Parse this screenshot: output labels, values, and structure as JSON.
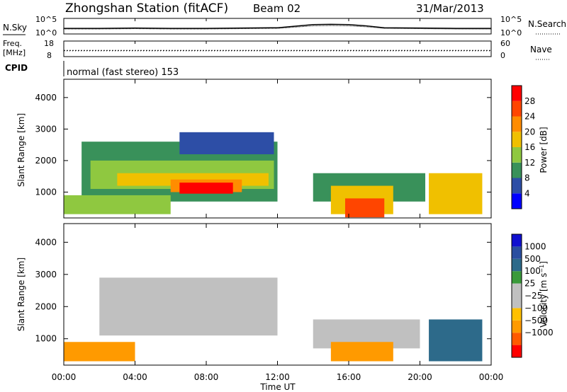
{
  "header": {
    "station": "Zhongshan Station (fitACF)",
    "beam": "Beam 02",
    "date": "31/Mar/2013"
  },
  "noise_panel": {
    "left_label": "N.Sky",
    "right_label": "N.Search",
    "left_ticks": [
      "10^5",
      "10^0"
    ],
    "right_ticks": [
      "10^5",
      "10^0"
    ]
  },
  "freq_panel": {
    "left_label_1": "Freq.",
    "left_label_2": "[MHz]",
    "right_label": "Nave",
    "left_ticks": [
      "18",
      "8"
    ],
    "right_ticks": [
      "60",
      "0"
    ]
  },
  "cpid_panel": {
    "label": "CPID",
    "text": "normal (fast stereo) 153"
  },
  "axes": {
    "ylabel": "Slant Range [km]",
    "xlabel": "Time UT",
    "y_ticks": [
      "1000",
      "2000",
      "3000",
      "4000"
    ],
    "x_ticks": [
      "00:00",
      "04:00",
      "08:00",
      "12:00",
      "16:00",
      "20:00",
      "00:00"
    ]
  },
  "colors": {
    "power": [
      "#0000ff",
      "#2d4ea6",
      "#39915a",
      "#8fc840",
      "#f0c000",
      "#ff8c00",
      "#ff4500",
      "#ff0000"
    ],
    "velocity": [
      "#ff0000",
      "#ff5a00",
      "#ff9a00",
      "#ffc000",
      "#c0c0c0",
      "#c0c0c0",
      "#3a9a3a",
      "#2d6a8a",
      "#2a4ea0",
      "#1010d0"
    ],
    "ground_scatter": "#c0c0c0"
  },
  "chart_data": [
    {
      "type": "line",
      "title": "N.Sky / N.Search",
      "xlim": [
        0,
        24
      ],
      "ylim_log10": [
        0,
        5
      ],
      "series": [
        {
          "name": "N.Sky",
          "x": [
            0,
            2,
            4,
            6,
            8,
            10,
            12,
            13,
            14,
            15,
            16,
            17,
            18,
            20,
            22,
            24
          ],
          "log10_values": [
            1.8,
            1.8,
            1.9,
            1.8,
            1.8,
            1.9,
            2.0,
            2.5,
            3.0,
            3.1,
            3.0,
            2.6,
            2.0,
            1.9,
            1.8,
            1.8
          ]
        },
        {
          "name": "N.Search",
          "x": [
            0,
            2,
            4,
            6,
            8,
            10,
            12,
            13,
            14,
            15,
            16,
            17,
            18,
            20,
            22,
            24
          ],
          "log10_values": [
            1.6,
            1.6,
            1.7,
            1.6,
            1.6,
            1.7,
            1.8,
            2.2,
            2.6,
            2.7,
            2.6,
            2.3,
            1.8,
            1.7,
            1.6,
            1.6
          ]
        }
      ]
    },
    {
      "type": "line",
      "title": "Freq / Nave",
      "xlim": [
        0,
        24
      ],
      "series": [
        {
          "name": "Freq",
          "unit": "MHz",
          "ylim": [
            8,
            18
          ],
          "x": [
            0,
            6,
            12,
            18,
            24
          ],
          "values": [
            12,
            12,
            12,
            12,
            12
          ]
        },
        {
          "name": "Nave",
          "ylim": [
            0,
            60
          ],
          "x": [
            0,
            6,
            12,
            18,
            24
          ],
          "values": [
            22,
            22,
            22,
            22,
            22
          ]
        }
      ]
    },
    {
      "type": "heatmap",
      "title": "Power",
      "ylabel": "Slant Range [km]",
      "xlabel": "Time UT",
      "xlim": [
        0,
        24
      ],
      "ylim": [
        180,
        4580
      ],
      "colorbar": {
        "label": "Power [dB]",
        "ticks": [
          4,
          8,
          12,
          16,
          20,
          24,
          28
        ],
        "range": [
          0,
          32
        ]
      },
      "regions": [
        {
          "t": [
            1.0,
            12.0
          ],
          "r": [
            700,
            2600
          ],
          "value": 8
        },
        {
          "t": [
            1.5,
            11.8
          ],
          "r": [
            1100,
            2000
          ],
          "value": 12
        },
        {
          "t": [
            3.0,
            11.5
          ],
          "r": [
            1200,
            1600
          ],
          "value": 16
        },
        {
          "t": [
            6.0,
            10.0
          ],
          "r": [
            1000,
            1400
          ],
          "value": 20
        },
        {
          "t": [
            6.5,
            9.5
          ],
          "r": [
            950,
            1300
          ],
          "value": 28
        },
        {
          "t": [
            6.5,
            11.8
          ],
          "r": [
            2200,
            2900
          ],
          "value": 6
        },
        {
          "t": [
            0,
            6
          ],
          "r": [
            300,
            900
          ],
          "value": 14
        },
        {
          "t": [
            14.0,
            20.3
          ],
          "r": [
            700,
            1600
          ],
          "value": 8
        },
        {
          "t": [
            15.0,
            18.5
          ],
          "r": [
            300,
            1200
          ],
          "value": 16
        },
        {
          "t": [
            15.8,
            18.0
          ],
          "r": [
            200,
            800
          ],
          "value": 24
        },
        {
          "t": [
            20.5,
            23.5
          ],
          "r": [
            300,
            1600
          ],
          "value": 16
        }
      ]
    },
    {
      "type": "heatmap",
      "title": "Velocity",
      "ylabel": "Slant Range [km]",
      "xlabel": "Time UT",
      "xlim": [
        0,
        24
      ],
      "ylim": [
        180,
        4580
      ],
      "colorbar": {
        "label": "Velocity [m s^-1]",
        "ticks": [
          1000,
          500,
          100,
          25,
          -25,
          -100,
          -500,
          -1000
        ]
      },
      "regions": [
        {
          "t": [
            2.0,
            12.0
          ],
          "r": [
            1100,
            2900
          ],
          "value": 0
        },
        {
          "t": [
            0,
            4.0
          ],
          "r": [
            300,
            900
          ],
          "value": -200
        },
        {
          "t": [
            14.0,
            20.0
          ],
          "r": [
            700,
            1600
          ],
          "value": 0
        },
        {
          "t": [
            15.0,
            18.5
          ],
          "r": [
            300,
            900
          ],
          "value": -200
        },
        {
          "t": [
            20.5,
            23.5
          ],
          "r": [
            300,
            1600
          ],
          "value": 300
        }
      ]
    }
  ]
}
